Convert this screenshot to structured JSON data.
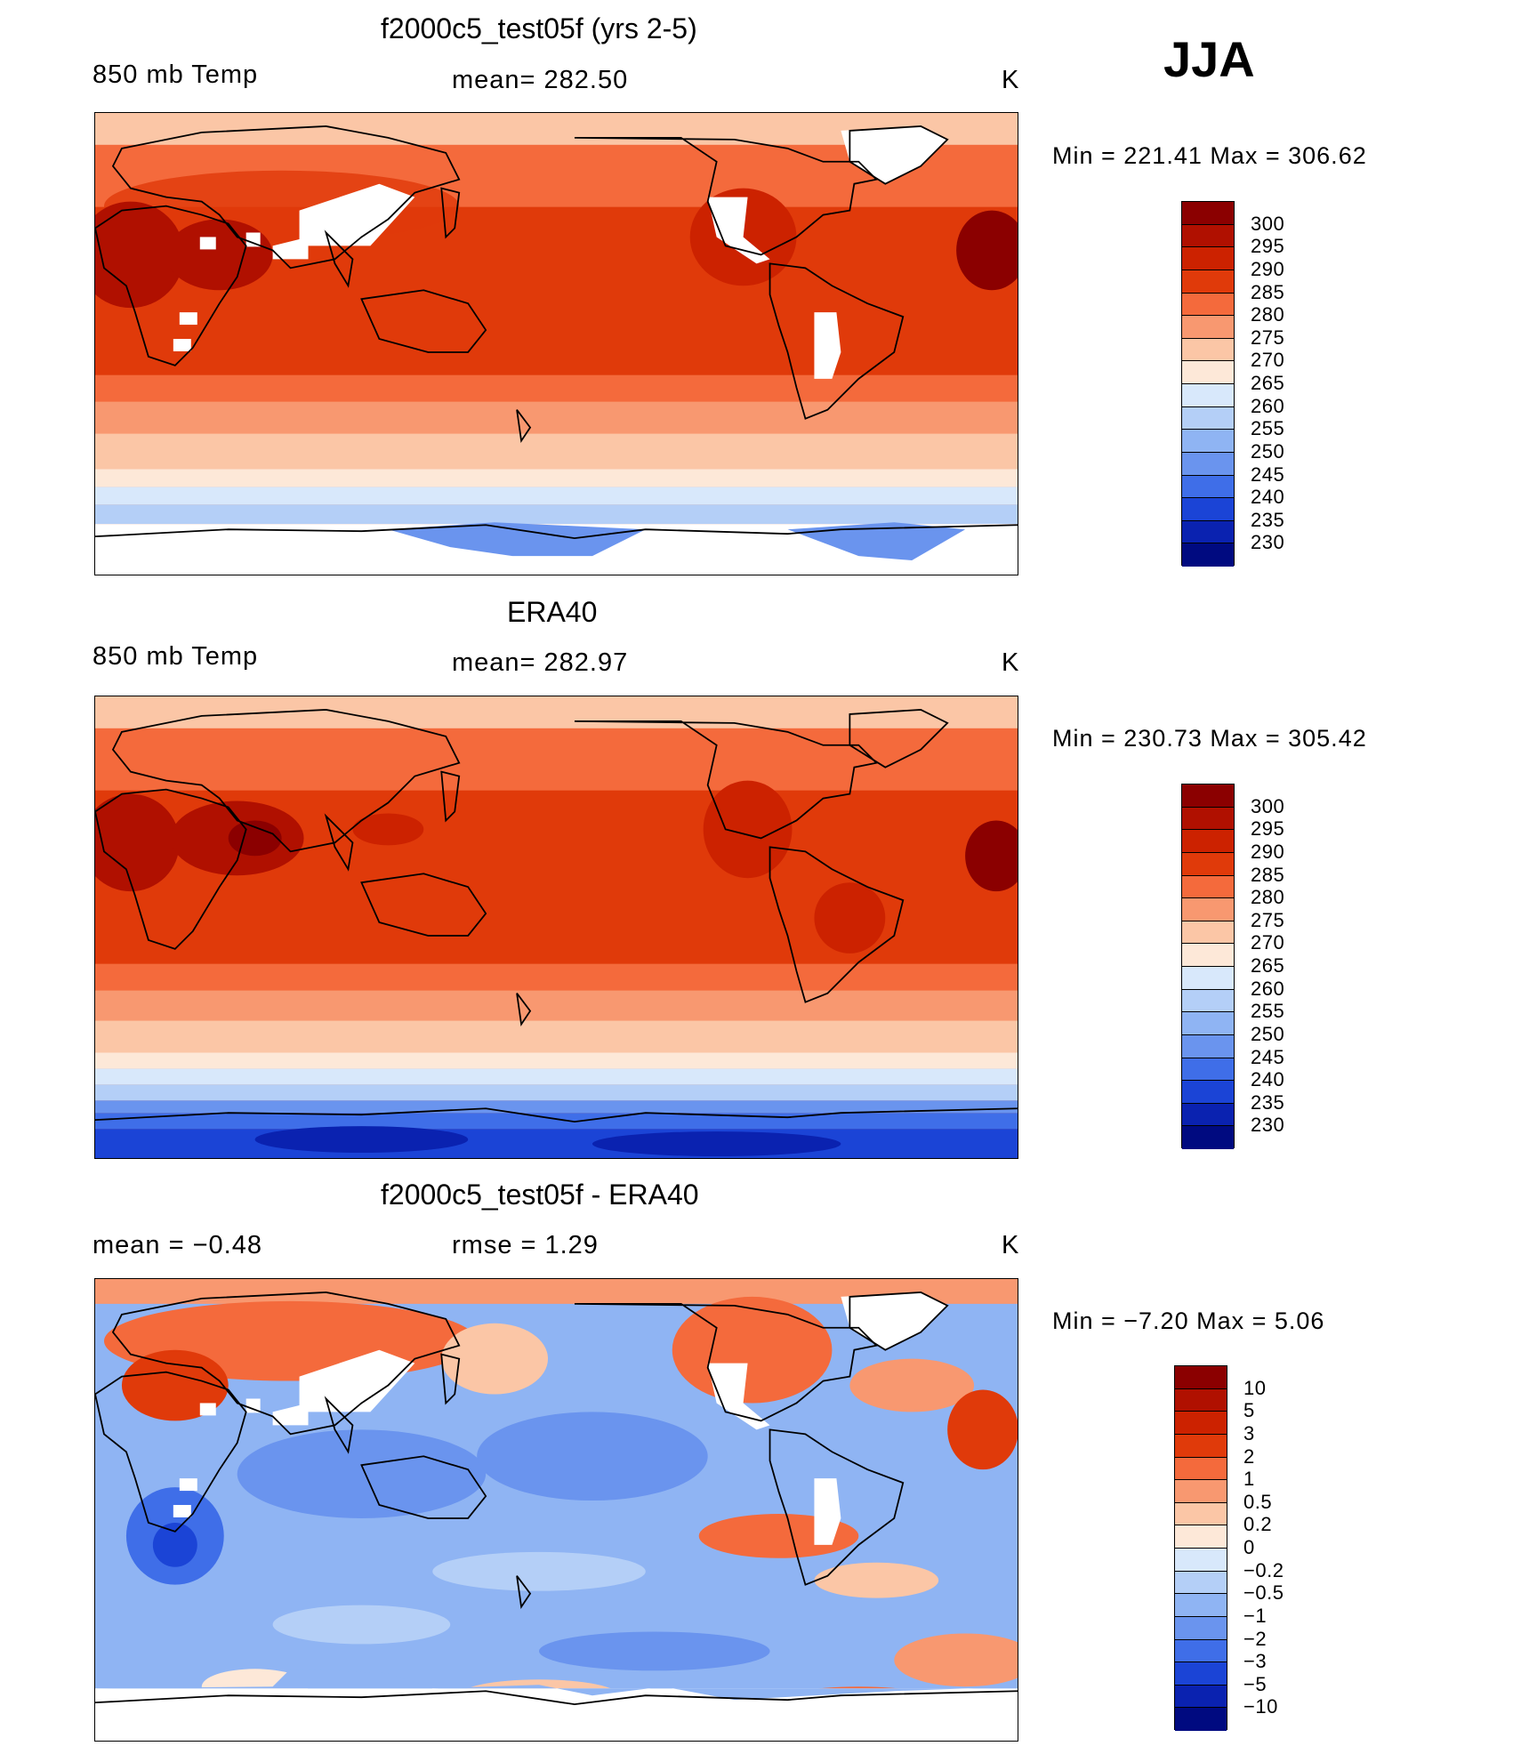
{
  "season_label": "JJA",
  "panels": [
    {
      "title": "f2000c5_test05f (yrs 2-5)",
      "left_label": "850 mb Temp",
      "center_label": "mean= 282.50",
      "units": "K",
      "minmax": "Min  =  221.41  Max  =  306.62"
    },
    {
      "title": "ERA40",
      "left_label": "850 mb Temp",
      "center_label": "mean= 282.97",
      "units": "K",
      "minmax": "Min  =  230.73  Max  =  305.42"
    },
    {
      "title": "f2000c5_test05f - ERA40",
      "left_label": "mean  =    −0.48",
      "center_label": "rmse  =     1.29",
      "units": "K",
      "minmax": "Min  =    −7.20  Max  =      5.06"
    }
  ],
  "temp_colorbar": {
    "labels": [
      "300",
      "295",
      "290",
      "285",
      "280",
      "275",
      "270",
      "265",
      "260",
      "255",
      "250",
      "245",
      "240",
      "235",
      "230"
    ],
    "colors": [
      "#8b0000",
      "#b01000",
      "#cc2200",
      "#e03a0a",
      "#f46a3c",
      "#f89870",
      "#fbc6a6",
      "#fde8d8",
      "#d8e8fb",
      "#b4cff7",
      "#8fb4f3",
      "#6a94ee",
      "#3f6ee8",
      "#1b44d6",
      "#0a22b0",
      "#000a80"
    ]
  },
  "diff_colorbar": {
    "labels": [
      "10",
      "5",
      "3",
      "2",
      "1",
      "0.5",
      "0.2",
      "0",
      "−0.2",
      "−0.5",
      "−1",
      "−2",
      "−3",
      "−5",
      "−10"
    ],
    "colors": [
      "#8b0000",
      "#b01000",
      "#cc2200",
      "#e03a0a",
      "#f46a3c",
      "#f89870",
      "#fbc6a6",
      "#fde8d8",
      "#d8e8fb",
      "#b4cff7",
      "#8fb4f3",
      "#6a94ee",
      "#3f6ee8",
      "#1b44d6",
      "#0a22b0",
      "#000a80"
    ]
  }
}
